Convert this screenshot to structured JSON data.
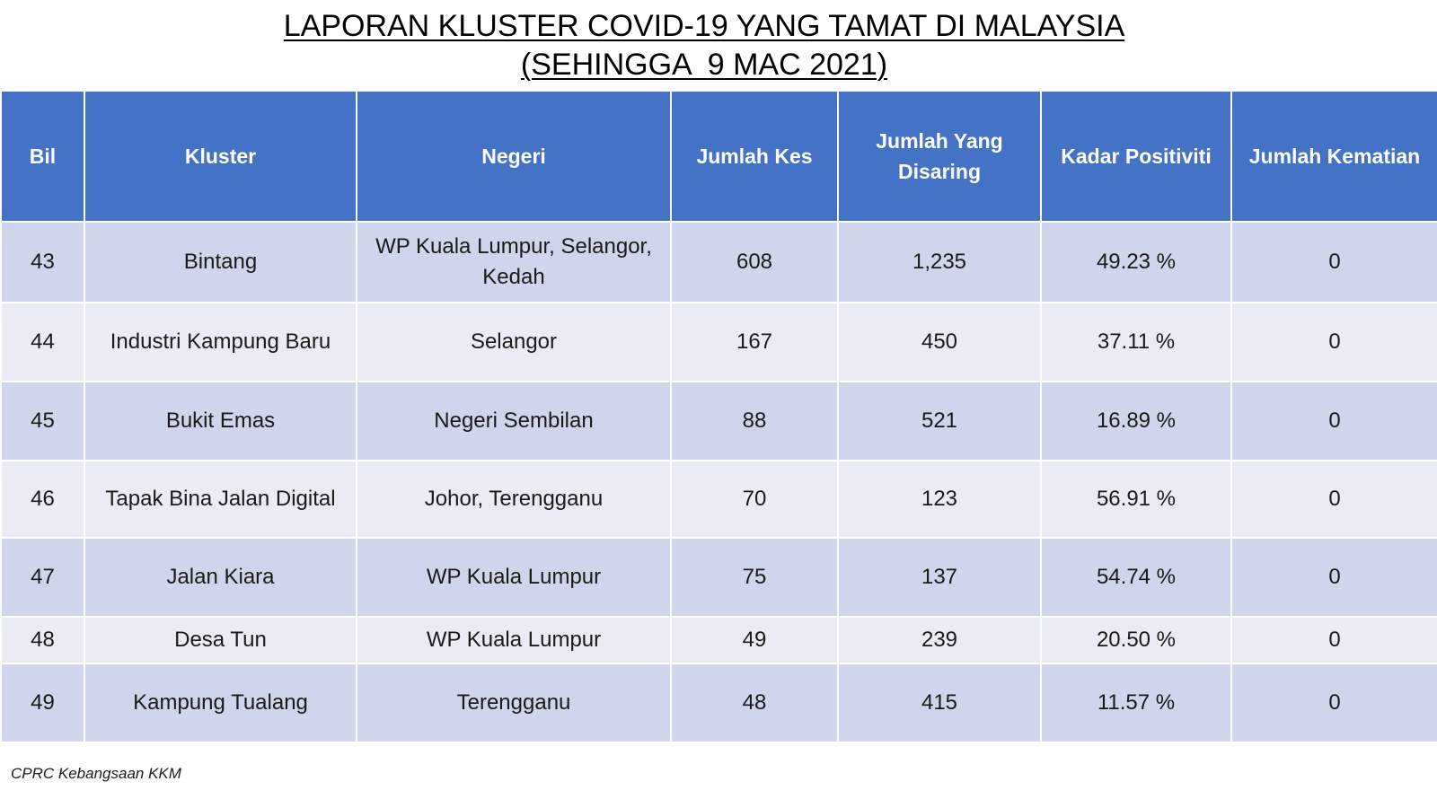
{
  "title": {
    "line1": "LAPORAN KLUSTER COVID-19 YANG TAMAT DI MALAYSIA",
    "line2": "(SEHINGGA  9 MAC 2021)"
  },
  "table": {
    "headers": [
      "Bil",
      "Kluster",
      "Negeri",
      "Jumlah Kes",
      "Jumlah Yang Disaring",
      "Kadar Positiviti",
      "Jumlah Kematian"
    ],
    "rows": [
      [
        "43",
        "Bintang",
        "WP Kuala Lumpur, Selangor, Kedah",
        "608",
        "1,235",
        "49.23 %",
        "0"
      ],
      [
        "44",
        "Industri Kampung Baru",
        "Selangor",
        "167",
        "450",
        "37.11 %",
        "0"
      ],
      [
        "45",
        "Bukit Emas",
        "Negeri Sembilan",
        "88",
        "521",
        "16.89 %",
        "0"
      ],
      [
        "46",
        "Tapak Bina Jalan Digital",
        "Johor, Terengganu",
        "70",
        "123",
        "56.91 %",
        "0"
      ],
      [
        "47",
        "Jalan Kiara",
        "WP Kuala Lumpur",
        "75",
        "137",
        "54.74 %",
        "0"
      ],
      [
        "48",
        "Desa Tun",
        "WP Kuala Lumpur",
        "49",
        "239",
        "20.50 %",
        "0"
      ],
      [
        "49",
        "Kampung Tualang",
        "Terengganu",
        "48",
        "415",
        "11.57 %",
        "0"
      ]
    ]
  },
  "source": "CPRC Kebangsaan KKM",
  "colors": {
    "header_bg": "#4472c4",
    "row_dark": "#cfd5ea",
    "row_light": "#e9ebf5"
  }
}
